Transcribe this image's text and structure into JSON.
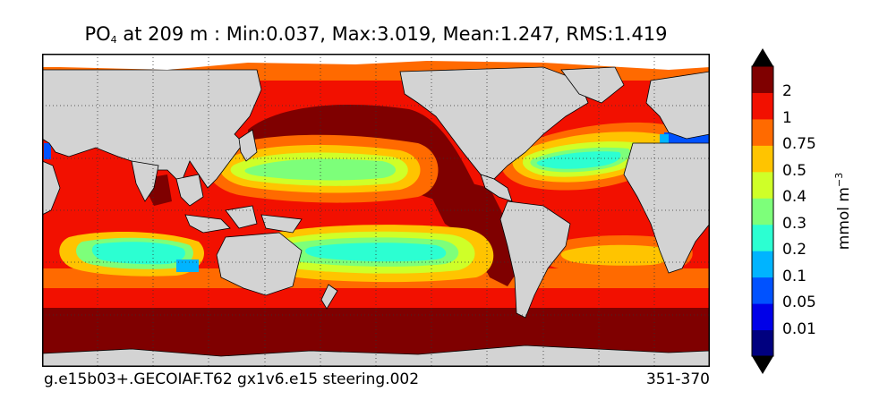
{
  "title": {
    "variable": "PO",
    "variable_sub": "4",
    "text": " at 209 m : Min:0.037, Max:3.019, Mean:1.247, RMS:1.419"
  },
  "footer": {
    "case": "g.e15b03+.GECOIAF.T62 gx1v6.e15 steering.002",
    "years": "351-370"
  },
  "colorbar": {
    "unit_label": "mmol m",
    "unit_exp": "−3",
    "ticks": [
      "2",
      "1",
      "0.75",
      "0.5",
      "0.4",
      "0.3",
      "0.2",
      "0.1",
      "0.05",
      "0.01"
    ],
    "colors": [
      "#00007f",
      "#0000e8",
      "#0052ff",
      "#00b4ff",
      "#2cffd2",
      "#7dff7a",
      "#cfff28",
      "#ffc400",
      "#ff6a00",
      "#f21000",
      "#7f0000"
    ]
  },
  "map": {
    "land_color": "#d3d3d3",
    "missing_color": "#ffffff",
    "gridlines": "dotted"
  }
}
